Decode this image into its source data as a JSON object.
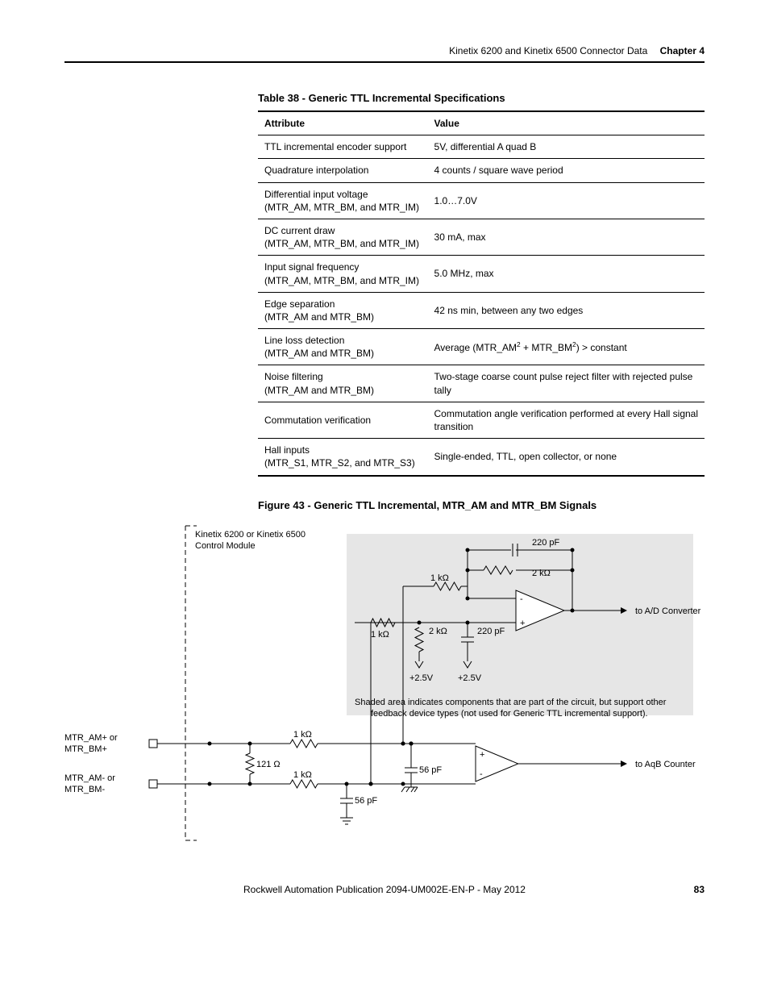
{
  "header": {
    "title": "Kinetix 6200 and Kinetix 6500 Connector Data",
    "chapter": "Chapter 4"
  },
  "table": {
    "caption": "Table 38 - Generic TTL Incremental Specifications",
    "columns": [
      "Attribute",
      "Value"
    ],
    "rows": [
      {
        "attr": "TTL incremental encoder support",
        "sub": "",
        "value": "5V, differential A quad B"
      },
      {
        "attr": "Quadrature interpolation",
        "sub": "",
        "value": "4 counts / square wave period"
      },
      {
        "attr": "Differential input voltage",
        "sub": "(MTR_AM, MTR_BM, and MTR_IM)",
        "value": "1.0…7.0V"
      },
      {
        "attr": "DC current draw",
        "sub": "(MTR_AM, MTR_BM, and MTR_IM)",
        "value": "30 mA, max"
      },
      {
        "attr": "Input signal frequency",
        "sub": "(MTR_AM, MTR_BM, and MTR_IM)",
        "value": "5.0 MHz, max"
      },
      {
        "attr": "Edge separation",
        "sub": "(MTR_AM and MTR_BM)",
        "value": "42 ns min, between any two edges"
      },
      {
        "attr": "Line loss detection",
        "sub": "(MTR_AM and MTR_BM)",
        "value_html": "Average (MTR_AM<sup>2</sup> + MTR_BM<sup>2</sup>) > constant"
      },
      {
        "attr": "Noise filtering",
        "sub": "(MTR_AM and MTR_BM)",
        "value": "Two-stage coarse count pulse reject filter with rejected pulse tally"
      },
      {
        "attr": "Commutation verification",
        "sub": "",
        "value": "Commutation angle verification performed at every Hall signal transition"
      },
      {
        "attr": "Hall inputs",
        "sub": "(MTR_S1, MTR_S2, and MTR_S3)",
        "value": "Single-ended, TTL, open collector, or none"
      }
    ]
  },
  "figure": {
    "caption": "Figure 43 - Generic TTL Incremental, MTR_AM and MTR_BM Signals",
    "module_label": "Kinetix 6200 or Kinetix 6500 Control Module",
    "shaded_note": "Shaded area indicates components that are part of the circuit, but support other feedback device types (not used for Generic TTL incremental support).",
    "sig_plus_a": "MTR_AM+ or",
    "sig_plus_b": "MTR_BM+",
    "sig_minus_a": "MTR_AM- or",
    "sig_minus_b": "MTR_BM-",
    "out_top": "to A/D Converter",
    "out_bot": "to AqB Counter",
    "r_1k": "1 kΩ",
    "r_2k": "2 kΩ",
    "r_121": "121 Ω",
    "c_220": "220 pF",
    "c_56": "56 pF",
    "v_25": "+2.5V",
    "op_plus": "+",
    "op_minus": "-",
    "colors": {
      "line": "#000000",
      "shaded_fill": "#e6e6e6",
      "shaded_stroke": "#000000"
    }
  },
  "footer": {
    "center": "Rockwell Automation Publication 2094-UM002E-EN-P - May 2012",
    "page": "83"
  }
}
